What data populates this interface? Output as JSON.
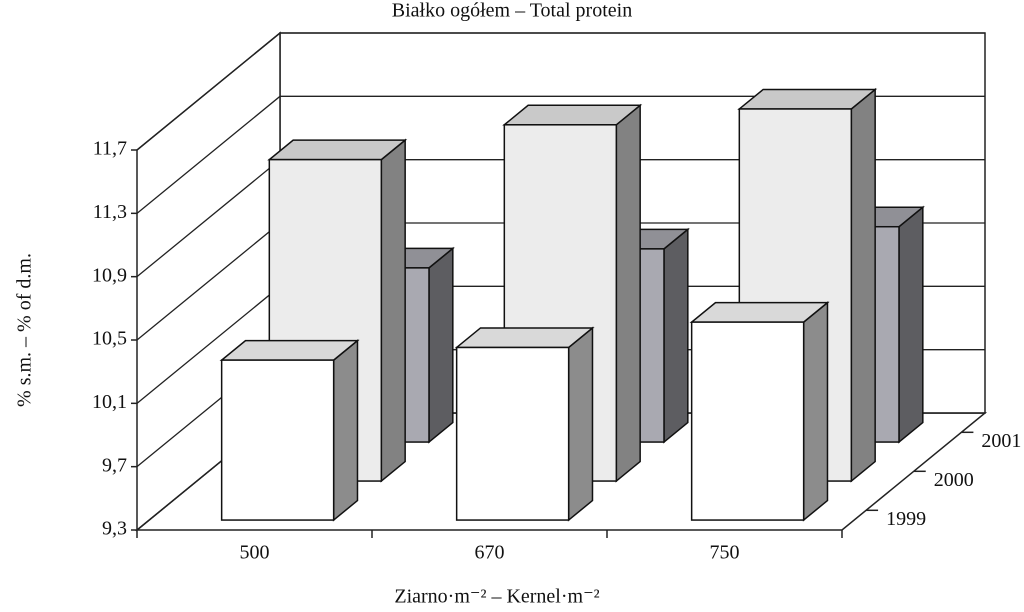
{
  "chart_data": {
    "type": "bar3d",
    "title": "Białko ogółem – Total protein",
    "y_label": "% s.m. – % of d.m.",
    "x_label": "Ziarno·m⁻²  – Kernel·m⁻²",
    "categories": [
      "500",
      "670",
      "750"
    ],
    "series": [
      {
        "name": "1999",
        "color": "#ffffff",
        "values": [
          10.31,
          10.39,
          10.55
        ]
      },
      {
        "name": "2000",
        "color": "#ececec",
        "values": [
          11.33,
          11.55,
          11.65
        ]
      },
      {
        "name": "2001",
        "color": "#a9a9b1",
        "values": [
          10.4,
          10.52,
          10.66
        ]
      }
    ],
    "ylim": [
      9.3,
      11.7
    ],
    "yticks": [
      {
        "value": 9.3,
        "label": "9,3"
      },
      {
        "value": 9.7,
        "label": "9,7"
      },
      {
        "value": 10.1,
        "label": "10,1"
      },
      {
        "value": 10.5,
        "label": "10,5"
      },
      {
        "value": 10.9,
        "label": "10,9"
      },
      {
        "value": 11.3,
        "label": "11,3"
      },
      {
        "value": 11.7,
        "label": "11,7"
      }
    ],
    "grid": true
  }
}
